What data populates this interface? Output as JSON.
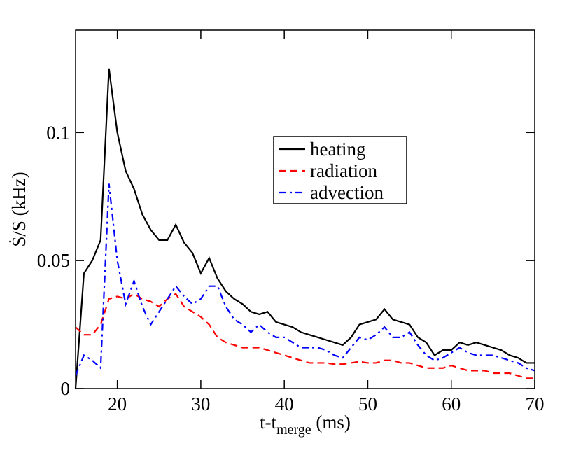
{
  "chart_data": {
    "type": "line",
    "x_label": {
      "text": "t-t",
      "subscript": "merge",
      "suffix": " (ms)"
    },
    "y_label": "Ṡ/S (kHz)",
    "x": [
      15,
      16,
      17,
      18,
      19,
      20,
      21,
      22,
      23,
      24,
      25,
      26,
      27,
      28,
      29,
      30,
      31,
      32,
      33,
      34,
      35,
      36,
      37,
      38,
      39,
      40,
      41,
      42,
      43,
      44,
      45,
      46,
      47,
      48,
      49,
      50,
      51,
      52,
      53,
      54,
      55,
      56,
      57,
      58,
      59,
      60,
      61,
      62,
      63,
      64,
      65,
      66,
      67,
      68,
      69,
      70
    ],
    "series": [
      {
        "name": "heating",
        "color": "#000000",
        "linestyle": "solid",
        "values": [
          0.0,
          0.045,
          0.05,
          0.058,
          0.125,
          0.1,
          0.085,
          0.078,
          0.068,
          0.062,
          0.058,
          0.058,
          0.064,
          0.057,
          0.053,
          0.045,
          0.051,
          0.043,
          0.038,
          0.035,
          0.033,
          0.03,
          0.029,
          0.03,
          0.026,
          0.025,
          0.024,
          0.022,
          0.021,
          0.02,
          0.019,
          0.018,
          0.017,
          0.02,
          0.025,
          0.026,
          0.027,
          0.031,
          0.027,
          0.026,
          0.025,
          0.02,
          0.018,
          0.013,
          0.015,
          0.015,
          0.018,
          0.017,
          0.018,
          0.017,
          0.016,
          0.015,
          0.013,
          0.012,
          0.01,
          0.01
        ]
      },
      {
        "name": "radiation",
        "color": "#ff0000",
        "linestyle": "dashed",
        "values": [
          0.024,
          0.021,
          0.021,
          0.025,
          0.035,
          0.036,
          0.035,
          0.037,
          0.035,
          0.034,
          0.032,
          0.035,
          0.037,
          0.032,
          0.03,
          0.028,
          0.025,
          0.02,
          0.018,
          0.017,
          0.016,
          0.016,
          0.016,
          0.015,
          0.014,
          0.013,
          0.012,
          0.011,
          0.01,
          0.01,
          0.01,
          0.0095,
          0.0095,
          0.01,
          0.0105,
          0.01,
          0.01,
          0.011,
          0.011,
          0.01,
          0.01,
          0.009,
          0.008,
          0.008,
          0.008,
          0.009,
          0.008,
          0.007,
          0.007,
          0.007,
          0.006,
          0.006,
          0.006,
          0.005,
          0.004,
          0.004
        ]
      },
      {
        "name": "advection",
        "color": "#0000ff",
        "linestyle": "dashdot",
        "values": [
          0.005,
          0.013,
          0.011,
          0.008,
          0.08,
          0.05,
          0.033,
          0.042,
          0.032,
          0.025,
          0.03,
          0.035,
          0.04,
          0.036,
          0.033,
          0.035,
          0.04,
          0.04,
          0.032,
          0.027,
          0.025,
          0.022,
          0.025,
          0.022,
          0.02,
          0.02,
          0.018,
          0.016,
          0.016,
          0.016,
          0.015,
          0.013,
          0.012,
          0.016,
          0.02,
          0.019,
          0.021,
          0.024,
          0.02,
          0.02,
          0.022,
          0.017,
          0.013,
          0.011,
          0.012,
          0.014,
          0.016,
          0.014,
          0.013,
          0.013,
          0.013,
          0.012,
          0.011,
          0.01,
          0.008,
          0.007
        ]
      }
    ],
    "xlim": [
      15,
      70
    ],
    "xticks": [
      20,
      30,
      40,
      50,
      60,
      70
    ],
    "ylim": [
      0,
      0.14
    ],
    "yticks": [
      0,
      0.05,
      0.1
    ],
    "legend": "center"
  }
}
